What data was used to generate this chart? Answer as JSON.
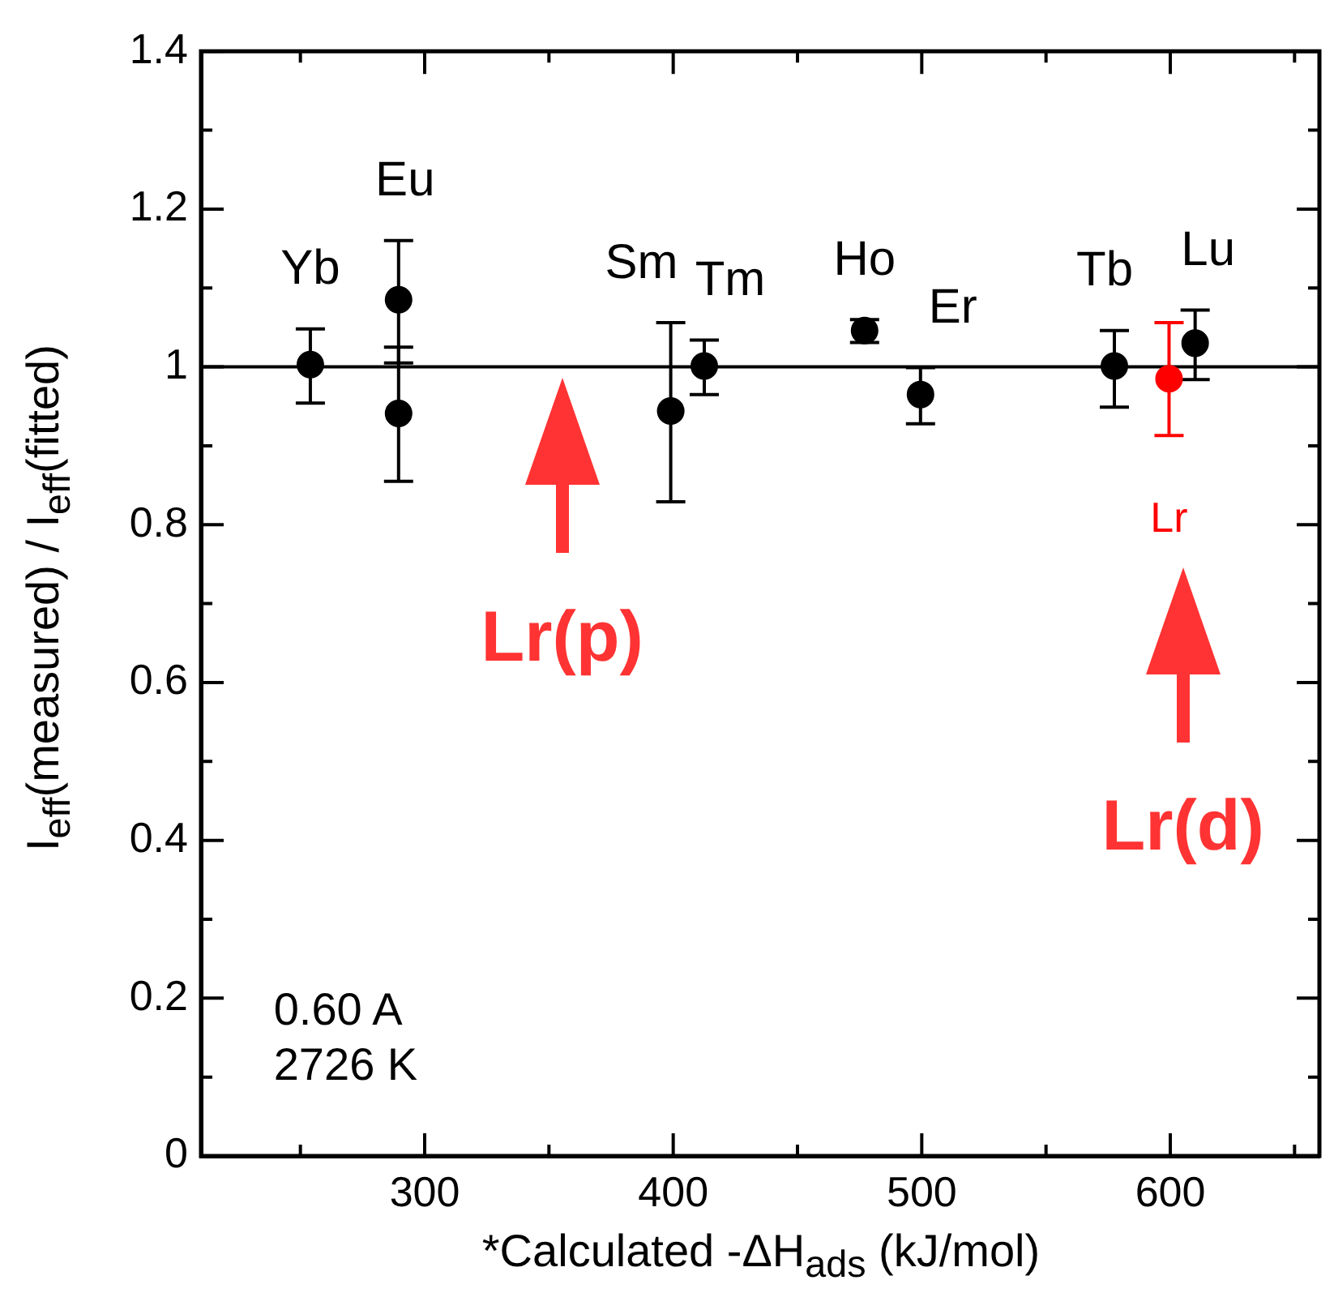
{
  "chart_data": {
    "type": "scatter",
    "xlabel": "*Calculated -ΔH$_{ads}$ (kJ/mol)",
    "ylabel": "I$_{eff}$(measured) / I$_{eff}$(fitted)",
    "xlim": [
      210,
      660
    ],
    "xticks": [
      {
        "value": 250,
        "label": null
      },
      300,
      {
        "value": 350,
        "label": null
      },
      400,
      {
        "value": 450,
        "label": null
      },
      500,
      {
        "value": 550,
        "label": null
      },
      600,
      {
        "value": 650,
        "label": null
      }
    ],
    "ylim": [
      0,
      1.4
    ],
    "yticks": [
      0,
      {
        "value": 0.1,
        "label": null
      },
      0.2,
      {
        "value": 0.3,
        "label": null
      },
      0.4,
      {
        "value": 0.5,
        "label": null
      },
      0.6,
      {
        "value": 0.7,
        "label": null
      },
      0.8,
      {
        "value": 0.9,
        "label": null
      },
      1,
      {
        "value": 1.1,
        "label": null
      },
      1.2,
      {
        "value": 1.3,
        "label": null
      },
      1.4
    ],
    "grid": false,
    "legend": false,
    "marker": "circle",
    "series": [
      {
        "color": "#000000",
        "x": [
          254,
          289.5,
          289.5,
          399,
          412.5,
          477,
          499.5,
          577.5,
          610
        ],
        "values": [
          1.003,
          1.085,
          0.941,
          0.944,
          1.001,
          1.046,
          0.965,
          1.001,
          1.03
        ],
        "errors": [
          [
            0.954,
            1.048
          ],
          [
            1.005,
            1.16
          ],
          [
            0.855,
            1.025
          ],
          [
            0.829,
            1.056
          ],
          [
            0.965,
            1.034
          ],
          [
            1.031,
            1.06
          ],
          [
            0.928,
            0.999
          ],
          [
            0.949,
            1.046
          ],
          [
            0.984,
            1.072
          ]
        ]
      },
      {
        "name": "Lr",
        "color": "#ff0000",
        "x": [
          599.5
        ],
        "values": [
          0.985
        ],
        "errors": [
          [
            0.913,
            1.056
          ]
        ]
      }
    ],
    "ref_lines": [
      {
        "axis": "y",
        "value": 1,
        "color": "#000000"
      }
    ],
    "annotations": [
      {
        "text": "Yb",
        "x": 254,
        "y": 1.003
      },
      {
        "text": "Eu",
        "x": 289.5,
        "y": 1.085
      },
      {
        "text": "Sm",
        "x": 399,
        "y": 0.944
      },
      {
        "text": "Tm",
        "x": 412.5,
        "y": 1.001
      },
      {
        "text": "Ho",
        "x": 477,
        "y": 1.046
      },
      {
        "text": "Er",
        "x": 499.5,
        "y": 0.965
      },
      {
        "text": "Tb",
        "x": 577.5,
        "y": 1.001
      },
      {
        "text": "Lu",
        "x": 610,
        "y": 1.03
      },
      "Lr(p)",
      "Lr(d)",
      "0.60 A",
      "2726 K"
    ]
  }
}
